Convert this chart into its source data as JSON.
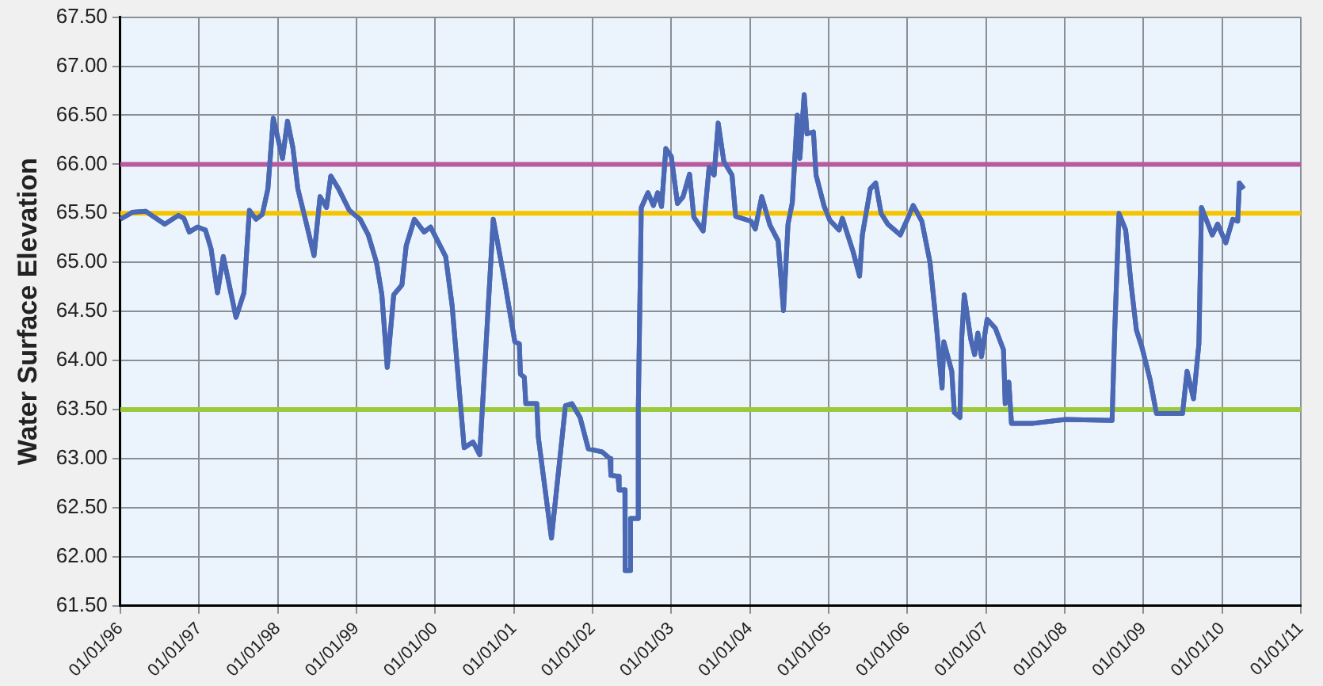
{
  "chart_data": {
    "type": "line",
    "ylabel": "Water Surface Elevation",
    "xlim": [
      "1996-01-01",
      "2011-01-01"
    ],
    "xticks": [
      {
        "value": "1996-01-01",
        "label": "01/01/96"
      },
      {
        "value": "1997-01-01",
        "label": "01/01/97"
      },
      {
        "value": "1998-01-01",
        "label": "01/01/98"
      },
      {
        "value": "1999-01-01",
        "label": "01/01/99"
      },
      {
        "value": "2000-01-01",
        "label": "01/01/00"
      },
      {
        "value": "2001-01-01",
        "label": "01/01/01"
      },
      {
        "value": "2002-01-01",
        "label": "01/01/02"
      },
      {
        "value": "2003-01-01",
        "label": "01/01/03"
      },
      {
        "value": "2004-01-01",
        "label": "01/01/04"
      },
      {
        "value": "2005-01-01",
        "label": "01/01/05"
      },
      {
        "value": "2006-01-01",
        "label": "01/01/06"
      },
      {
        "value": "2007-01-01",
        "label": "01/01/07"
      },
      {
        "value": "2008-01-01",
        "label": "01/01/08"
      },
      {
        "value": "2009-01-01",
        "label": "01/01/09"
      },
      {
        "value": "2010-01-01",
        "label": "01/01/10"
      },
      {
        "value": "2011-01-01",
        "label": "01/01/11"
      }
    ],
    "ylim": [
      61.5,
      67.5
    ],
    "yticks": [
      {
        "value": 61.5,
        "label": "61.50"
      },
      {
        "value": 62,
        "label": "62.00"
      },
      {
        "value": 62.5,
        "label": "62.50"
      },
      {
        "value": 63,
        "label": "63.00"
      },
      {
        "value": 63.5,
        "label": "63.50"
      },
      {
        "value": 64,
        "label": "64.00"
      },
      {
        "value": 64.5,
        "label": "64.50"
      },
      {
        "value": 65,
        "label": "65.00"
      },
      {
        "value": 65.5,
        "label": "65.50"
      },
      {
        "value": 66,
        "label": "66.00"
      },
      {
        "value": 66.5,
        "label": "66.50"
      },
      {
        "value": 67,
        "label": "67.00"
      },
      {
        "value": 67.5,
        "label": "67.50"
      }
    ],
    "grid": true,
    "legend": false,
    "ref_lines": [
      {
        "axis": "y",
        "value": 66,
        "color": "#b85aa0"
      },
      {
        "axis": "y",
        "value": 65.5,
        "color": "#f5c400"
      },
      {
        "axis": "y",
        "value": 63.5,
        "color": "#9cc83c"
      }
    ],
    "series": [
      {
        "color": "#4a68b4",
        "x": [
          "1996-01-01",
          "1996-02-25",
          "1996-04-28",
          "1996-07-25",
          "1996-09-27",
          "1996-10-22",
          "1996-11-16",
          "1996-12-24",
          "1997-01-30",
          "1997-02-25",
          "1997-03-27",
          "1997-04-23",
          "1997-06-21",
          "1997-07-28",
          "1997-08-22",
          "1997-09-22",
          "1997-10-21",
          "1997-11-16",
          "1997-12-11",
          "1998-01-23",
          "1998-02-15",
          "1998-03-12",
          "1998-04-04",
          "1998-05-11",
          "1998-06-18",
          "1998-07-16",
          "1998-08-15",
          "1998-09-04",
          "1998-10-10",
          "1998-11-29",
          "1999-01-18",
          "1999-02-25",
          "1999-04-04",
          "1999-04-29",
          "1999-05-24",
          "1999-06-23",
          "1999-07-31",
          "1999-08-20",
          "1999-09-27",
          "1999-11-11",
          "1999-12-11",
          "2000-02-19",
          "2000-03-20",
          "2000-05-15",
          "2000-06-25",
          "2000-07-26",
          "2000-09-27",
          "2000-11-17",
          "2001-01-05",
          "2001-01-26",
          "2001-01-31",
          "2001-02-18",
          "2001-02-25",
          "2001-04-17",
          "2001-04-24",
          "2001-06-24",
          "2001-08-28",
          "2001-09-27",
          "2001-11-04",
          "2001-12-12",
          "2002-02-13",
          "2002-03-23",
          "2002-03-27",
          "2002-04-29",
          "2002-05-04",
          "2002-05-31",
          "2002-06-01",
          "2002-06-25",
          "2002-06-26",
          "2002-07-31",
          "2002-08-01",
          "2002-08-15",
          "2002-09-15",
          "2002-10-10",
          "2002-10-30",
          "2002-11-17",
          "2002-12-07",
          "2003-01-01",
          "2003-01-30",
          "2003-02-25",
          "2003-03-27",
          "2003-04-16",
          "2003-05-29",
          "2003-06-26",
          "2003-07-19",
          "2003-08-07",
          "2003-09-02",
          "2003-10-10",
          "2003-10-27",
          "2004-01-06",
          "2004-01-26",
          "2004-02-25",
          "2004-04-03",
          "2004-05-11",
          "2004-06-05",
          "2004-06-26",
          "2004-07-16",
          "2004-08-08",
          "2004-08-20",
          "2004-09-09",
          "2004-09-22",
          "2004-10-22",
          "2004-11-03",
          "2004-12-11",
          "2005-01-06",
          "2005-02-18",
          "2005-03-05",
          "2005-04-24",
          "2005-05-24",
          "2005-06-06",
          "2005-07-13",
          "2005-08-07",
          "2005-09-01",
          "2005-10-02",
          "2005-11-29",
          "2006-01-01",
          "2006-01-28",
          "2006-03-09",
          "2006-04-16",
          "2006-05-12",
          "2006-06-11",
          "2006-06-19",
          "2006-07-26",
          "2006-08-07",
          "2006-09-02",
          "2006-09-10",
          "2006-09-22",
          "2006-10-22",
          "2006-11-09",
          "2006-11-24",
          "2006-12-11",
          "2007-01-06",
          "2007-02-13",
          "2007-03-23",
          "2007-03-31",
          "2007-04-17",
          "2007-04-29",
          "2007-08-08",
          "2008-01-06",
          "2008-08-08",
          "2008-08-20",
          "2008-09-09",
          "2008-10-10",
          "2008-11-04",
          "2008-11-29",
          "2008-12-24",
          "2009-01-31",
          "2009-03-02",
          "2009-07-01",
          "2009-07-22",
          "2009-08-21",
          "2009-09-15",
          "2009-09-27",
          "2009-11-16",
          "2009-12-11",
          "2010-01-18",
          "2010-02-19",
          "2010-03-14",
          "2010-03-22",
          "2010-04-11"
        ],
        "values": [
          65.44,
          65.51,
          65.52,
          65.39,
          65.48,
          65.45,
          65.31,
          65.36,
          65.33,
          65.14,
          64.69,
          65.06,
          64.44,
          64.69,
          65.53,
          65.44,
          65.49,
          65.75,
          66.47,
          66.06,
          66.44,
          66.17,
          65.75,
          65.42,
          65.07,
          65.67,
          65.56,
          65.88,
          65.75,
          65.53,
          65.44,
          65.28,
          65.0,
          64.67,
          63.93,
          64.67,
          64.77,
          65.17,
          65.44,
          65.31,
          65.36,
          65.06,
          64.56,
          63.11,
          63.17,
          63.04,
          65.44,
          64.83,
          64.19,
          64.17,
          63.86,
          63.83,
          63.56,
          63.56,
          63.22,
          62.19,
          63.54,
          63.56,
          63.42,
          63.1,
          63.07,
          63.0,
          62.83,
          62.82,
          62.68,
          62.68,
          61.86,
          61.86,
          62.39,
          62.39,
          63.5,
          65.56,
          65.71,
          65.58,
          65.71,
          65.57,
          66.16,
          66.08,
          65.6,
          65.67,
          65.9,
          65.46,
          65.32,
          65.97,
          65.89,
          66.42,
          66.03,
          65.89,
          65.47,
          65.42,
          65.34,
          65.67,
          65.38,
          65.22,
          64.51,
          65.39,
          65.61,
          66.5,
          66.06,
          66.71,
          66.31,
          66.33,
          65.89,
          65.57,
          65.43,
          65.33,
          65.45,
          65.11,
          64.86,
          65.28,
          65.75,
          65.81,
          65.5,
          65.39,
          65.28,
          65.44,
          65.58,
          65.42,
          65.0,
          64.44,
          63.72,
          64.19,
          63.89,
          63.47,
          63.42,
          64.22,
          64.67,
          64.22,
          64.06,
          64.28,
          64.04,
          64.42,
          64.33,
          64.11,
          63.56,
          63.78,
          63.36,
          63.36,
          63.4,
          63.39,
          64.28,
          65.5,
          65.33,
          64.78,
          64.31,
          64.14,
          63.81,
          63.46,
          63.46,
          63.89,
          63.61,
          64.17,
          65.56,
          65.28,
          65.39,
          65.2,
          65.44,
          65.42,
          65.81,
          65.75
        ]
      }
    ]
  }
}
